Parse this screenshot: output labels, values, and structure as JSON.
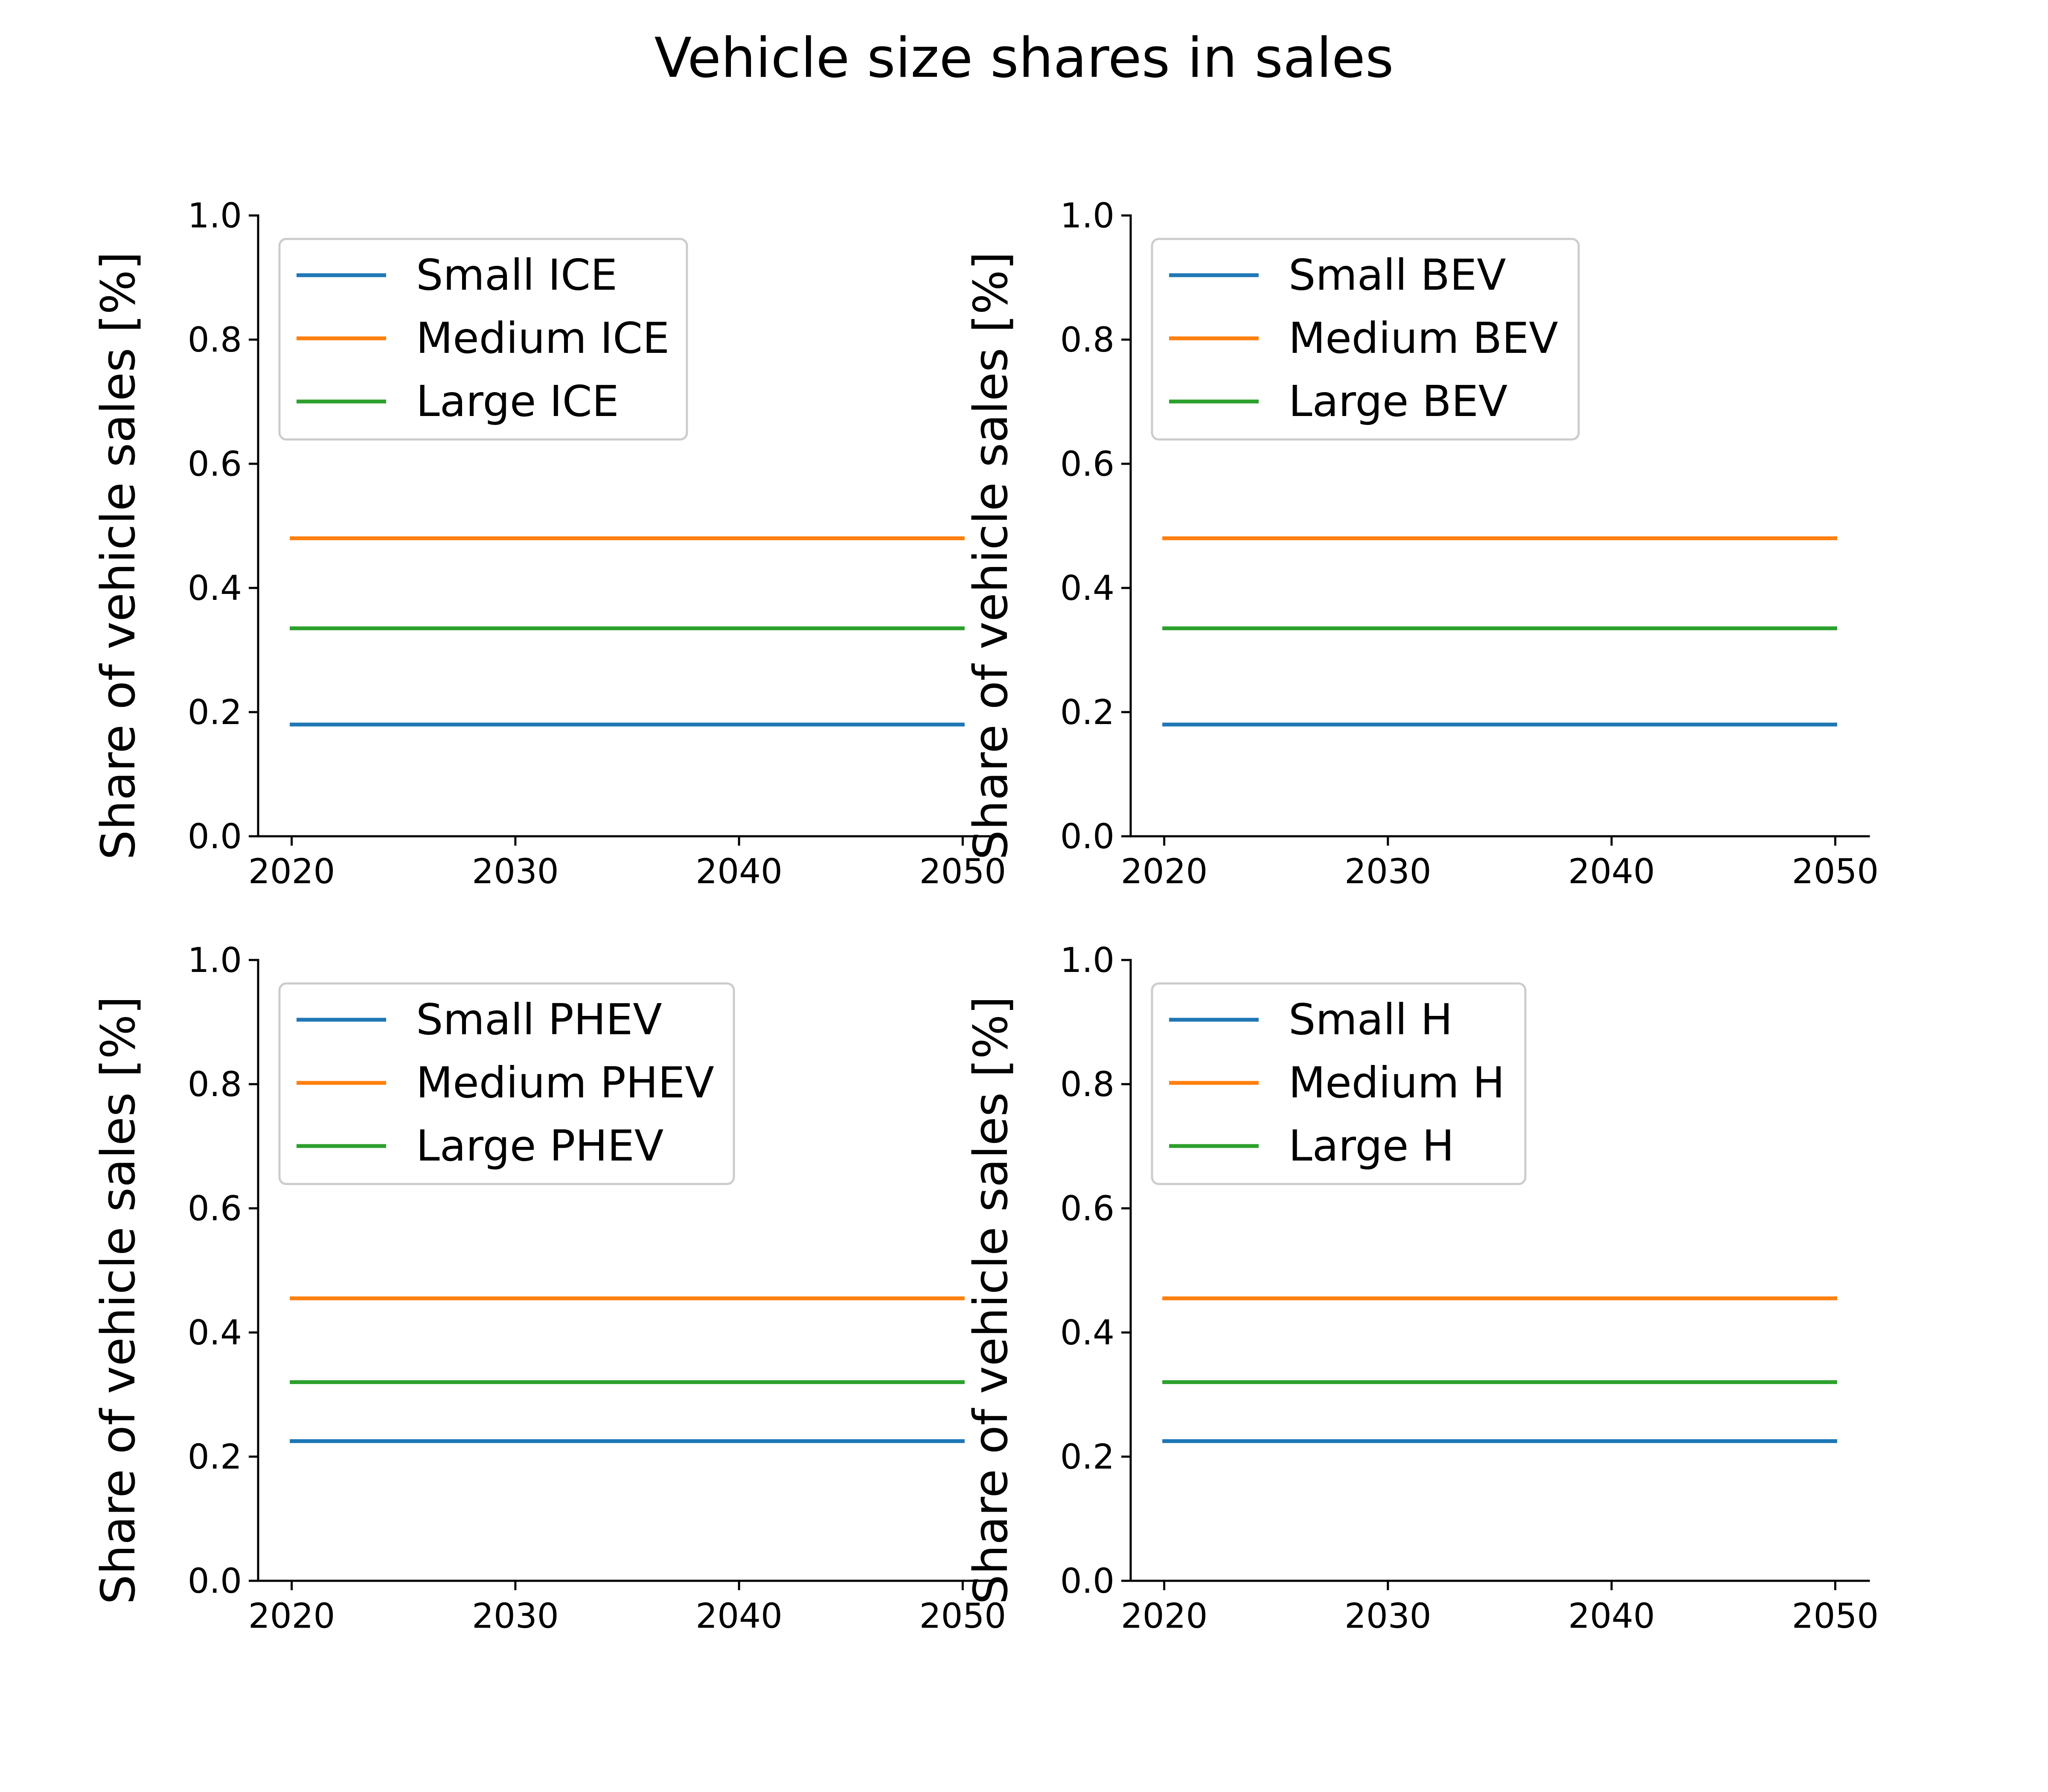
{
  "figure": {
    "title": "Vehicle size shares in sales"
  },
  "chart_data": [
    {
      "type": "line",
      "ylabel": "Share of vehicle sales [%]",
      "xlabel": "",
      "x": [
        2020,
        2050
      ],
      "xticks": [
        2020,
        2030,
        2040,
        2050
      ],
      "yticks": [
        0.0,
        0.2,
        0.4,
        0.6,
        0.8,
        1.0
      ],
      "xlim": [
        2018.5,
        2051.5
      ],
      "ylim": [
        0,
        1
      ],
      "grid": false,
      "legend_position": "upper-left",
      "series": [
        {
          "name": "Small ICE",
          "color": "#1f77b4",
          "values": [
            0.18,
            0.18
          ]
        },
        {
          "name": "Medium ICE",
          "color": "#ff7f0e",
          "values": [
            0.48,
            0.48
          ]
        },
        {
          "name": "Large ICE",
          "color": "#2ca02c",
          "values": [
            0.335,
            0.335
          ]
        }
      ]
    },
    {
      "type": "line",
      "ylabel": "Share of vehicle sales [%]",
      "xlabel": "",
      "x": [
        2020,
        2050
      ],
      "xticks": [
        2020,
        2030,
        2040,
        2050
      ],
      "yticks": [
        0.0,
        0.2,
        0.4,
        0.6,
        0.8,
        1.0
      ],
      "xlim": [
        2018.5,
        2051.5
      ],
      "ylim": [
        0,
        1
      ],
      "grid": false,
      "legend_position": "upper-left",
      "series": [
        {
          "name": "Small BEV",
          "color": "#1f77b4",
          "values": [
            0.18,
            0.18
          ]
        },
        {
          "name": "Medium BEV",
          "color": "#ff7f0e",
          "values": [
            0.48,
            0.48
          ]
        },
        {
          "name": "Large BEV",
          "color": "#2ca02c",
          "values": [
            0.335,
            0.335
          ]
        }
      ]
    },
    {
      "type": "line",
      "ylabel": "Share of vehicle sales [%]",
      "xlabel": "",
      "x": [
        2020,
        2050
      ],
      "xticks": [
        2020,
        2030,
        2040,
        2050
      ],
      "yticks": [
        0.0,
        0.2,
        0.4,
        0.6,
        0.8,
        1.0
      ],
      "xlim": [
        2018.5,
        2051.5
      ],
      "ylim": [
        0,
        1
      ],
      "grid": false,
      "legend_position": "upper-left",
      "series": [
        {
          "name": "Small PHEV",
          "color": "#1f77b4",
          "values": [
            0.225,
            0.225
          ]
        },
        {
          "name": "Medium PHEV",
          "color": "#ff7f0e",
          "values": [
            0.455,
            0.455
          ]
        },
        {
          "name": "Large PHEV",
          "color": "#2ca02c",
          "values": [
            0.32,
            0.32
          ]
        }
      ]
    },
    {
      "type": "line",
      "ylabel": "Share of vehicle sales [%]",
      "xlabel": "",
      "x": [
        2020,
        2050
      ],
      "xticks": [
        2020,
        2030,
        2040,
        2050
      ],
      "yticks": [
        0.0,
        0.2,
        0.4,
        0.6,
        0.8,
        1.0
      ],
      "xlim": [
        2018.5,
        2051.5
      ],
      "ylim": [
        0,
        1
      ],
      "grid": false,
      "legend_position": "upper-left",
      "series": [
        {
          "name": "Small H",
          "color": "#1f77b4",
          "values": [
            0.225,
            0.225
          ]
        },
        {
          "name": "Medium H",
          "color": "#ff7f0e",
          "values": [
            0.455,
            0.455
          ]
        },
        {
          "name": "Large H",
          "color": "#2ca02c",
          "values": [
            0.32,
            0.32
          ]
        }
      ]
    }
  ]
}
